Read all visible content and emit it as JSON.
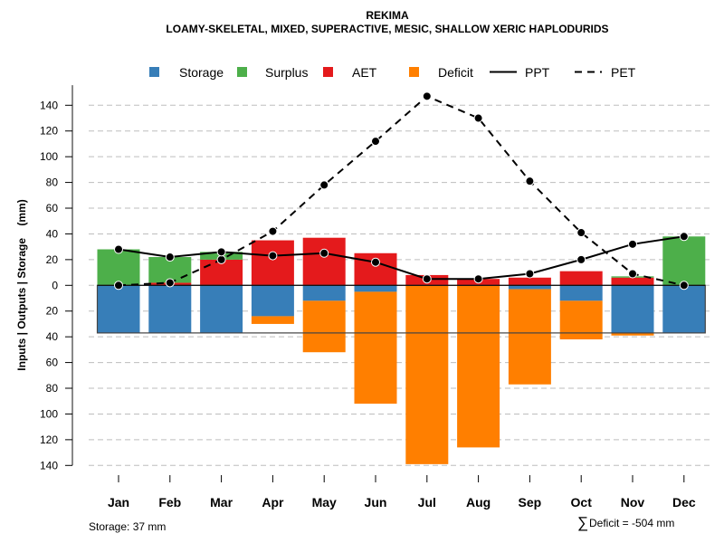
{
  "chart_data": {
    "type": "bar",
    "title": "REKIMA",
    "subtitle": "LOAMY-SKELETAL, MIXED, SUPERACTIVE, MESIC, SHALLOW XERIC HAPLODURIDS",
    "ylabel": "Inputs | Outputs | Storage    (mm)",
    "xlabel": "",
    "ylim": [
      -140,
      150
    ],
    "yticks": [
      140,
      120,
      100,
      80,
      60,
      40,
      20,
      0,
      20,
      40,
      60,
      80,
      100,
      120,
      140
    ],
    "ytick_values": [
      140,
      120,
      100,
      80,
      60,
      40,
      20,
      0,
      -20,
      -40,
      -60,
      -80,
      -100,
      -120,
      -140
    ],
    "grid": true,
    "legend_position": "top",
    "categories": [
      "Jan",
      "Feb",
      "Mar",
      "Apr",
      "May",
      "Jun",
      "Jul",
      "Aug",
      "Sep",
      "Oct",
      "Nov",
      "Dec"
    ],
    "series": [
      {
        "name": "Storage",
        "type": "bar",
        "direction": "down",
        "color": "#377EB8",
        "values": [
          37,
          37,
          37,
          24,
          12,
          5,
          0,
          0,
          3,
          12,
          37,
          37
        ]
      },
      {
        "name": "Surplus",
        "type": "bar",
        "direction": "up",
        "color": "#4DAF4A",
        "values": [
          28,
          20,
          6,
          0,
          0,
          0,
          0,
          0,
          0,
          0,
          1,
          38
        ]
      },
      {
        "name": "AET",
        "type": "bar",
        "direction": "up",
        "color": "#E41A1C",
        "values": [
          0,
          2,
          20,
          35,
          37,
          25,
          8,
          5,
          6,
          11,
          6,
          0
        ]
      },
      {
        "name": "Deficit",
        "type": "bar",
        "direction": "down",
        "color": "#FF7F00",
        "values": [
          0,
          0,
          0,
          6,
          40,
          87,
          139,
          126,
          74,
          30,
          2,
          0
        ]
      },
      {
        "name": "PPT",
        "type": "line",
        "style": "solid",
        "color": "#000000",
        "values": [
          28,
          22,
          26,
          23,
          25,
          18,
          5,
          5,
          9,
          20,
          32,
          38
        ]
      },
      {
        "name": "PET",
        "type": "line",
        "style": "dashed",
        "color": "#000000",
        "values": [
          0,
          2,
          20,
          42,
          78,
          112,
          147,
          130,
          81,
          41,
          9,
          0
        ]
      }
    ],
    "storage_capacity": 37,
    "annotations": {
      "storage_note": "Storage: 37 mm",
      "deficit_note": "Deficit = -504 mm",
      "sum_symbol": "∑"
    }
  },
  "legend": {
    "items": [
      {
        "label": "Storage",
        "kind": "box",
        "color": "#377EB8"
      },
      {
        "label": "Surplus",
        "kind": "box",
        "color": "#4DAF4A"
      },
      {
        "label": "AET",
        "kind": "box",
        "color": "#E41A1C"
      },
      {
        "label": "Deficit",
        "kind": "box",
        "color": "#FF7F00"
      },
      {
        "label": "PPT",
        "kind": "solid-line",
        "color": "#000000"
      },
      {
        "label": "PET",
        "kind": "dashed-line",
        "color": "#000000"
      }
    ]
  }
}
